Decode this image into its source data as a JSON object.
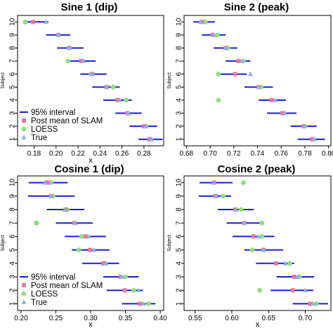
{
  "colors": {
    "interval": "#1a1adb",
    "slam": "#e8789c",
    "loess": "#8ddf7e",
    "true": "#8ab4e8",
    "axis": "#000000"
  },
  "legend": [
    {
      "key": "interval",
      "label": "95% interval",
      "symbol": "line"
    },
    {
      "key": "slam",
      "label": "Post mean of SLAM",
      "symbol": "square"
    },
    {
      "key": "loess",
      "label": "LOESS",
      "symbol": "circle"
    },
    {
      "key": "true",
      "label": "True",
      "symbol": "triangle"
    }
  ],
  "chart_data": [
    {
      "type": "scatter",
      "title": "Sine 1 (dip)",
      "xlabel": "x",
      "ylabel": "Subject",
      "xlim": [
        0.165,
        0.298
      ],
      "ylim": [
        0.5,
        10.5
      ],
      "xticks": [
        "0.18",
        "0.20",
        "0.22",
        "0.24",
        "0.26",
        "0.28"
      ],
      "xtick_values": [
        0.18,
        0.2,
        0.22,
        0.24,
        0.26,
        0.28
      ],
      "yticks": [
        "1",
        "2",
        "3",
        "4",
        "5",
        "6",
        "7",
        "8",
        "9",
        "10"
      ],
      "legend_position": "bottom-left",
      "subjects": [
        {
          "subject": 10,
          "lo": 0.17,
          "hi": 0.193,
          "slam": 0.179,
          "loess": 0.172,
          "true": 0.191
        },
        {
          "subject": 9,
          "lo": 0.191,
          "hi": 0.213,
          "slam": 0.202,
          "loess": 0.202,
          "true": 0.202
        },
        {
          "subject": 8,
          "lo": 0.201,
          "hi": 0.225,
          "slam": 0.212,
          "loess": 0.212,
          "true": 0.212
        },
        {
          "subject": 7,
          "lo": 0.211,
          "hi": 0.236,
          "slam": 0.223,
          "loess": 0.211,
          "true": 0.225
        },
        {
          "subject": 6,
          "lo": 0.222,
          "hi": 0.246,
          "slam": 0.233,
          "loess": 0.232,
          "true": 0.233
        },
        {
          "subject": 5,
          "lo": 0.233,
          "hi": 0.258,
          "slam": 0.246,
          "loess": 0.252,
          "true": 0.246
        },
        {
          "subject": 4,
          "lo": 0.243,
          "hi": 0.269,
          "slam": 0.256,
          "loess": 0.264,
          "true": 0.258
        },
        {
          "subject": 3,
          "lo": 0.254,
          "hi": 0.278,
          "slam": 0.265,
          "loess": 0.265,
          "true": 0.266
        },
        {
          "subject": 2,
          "lo": 0.267,
          "hi": 0.292,
          "slam": 0.28,
          "loess": 0.282,
          "true": 0.282
        },
        {
          "subject": 1,
          "lo": 0.275,
          "hi": 0.297,
          "slam": 0.285,
          "loess": 0.286,
          "true": 0.287
        }
      ]
    },
    {
      "type": "scatter",
      "title": "Sine 2 (peak)",
      "xlabel": "",
      "ylabel": "Subject",
      "xlim": [
        0.678,
        0.802
      ],
      "ylim": [
        0.5,
        10.5
      ],
      "xticks": [
        "0.68",
        "0.70",
        "0.72",
        "0.74",
        "0.76",
        "0.78",
        "0.80"
      ],
      "xtick_values": [
        0.68,
        0.7,
        0.72,
        0.74,
        0.76,
        0.78,
        0.8
      ],
      "yticks": [
        "1",
        "2",
        "3",
        "4",
        "5",
        "6",
        "7",
        "8",
        "9",
        "10"
      ],
      "subjects": [
        {
          "subject": 10,
          "lo": 0.686,
          "hi": 0.704,
          "slam": 0.693,
          "loess": 0.696,
          "true": 0.692
        },
        {
          "subject": 9,
          "lo": 0.693,
          "hi": 0.713,
          "slam": 0.702,
          "loess": 0.706,
          "true": 0.703
        },
        {
          "subject": 8,
          "lo": 0.703,
          "hi": 0.723,
          "slam": 0.713,
          "loess": 0.715,
          "true": 0.713
        },
        {
          "subject": 7,
          "lo": 0.713,
          "hi": 0.734,
          "slam": 0.724,
          "loess": 0.728,
          "true": 0.727
        },
        {
          "subject": 6,
          "lo": 0.706,
          "hi": 0.731,
          "slam": 0.721,
          "loess": 0.707,
          "true": 0.734
        },
        {
          "subject": 5,
          "lo": 0.729,
          "hi": 0.753,
          "slam": 0.741,
          "loess": 0.743,
          "true": 0.741
        },
        {
          "subject": 4,
          "lo": 0.741,
          "hi": 0.764,
          "slam": 0.752,
          "loess": 0.707,
          "true": 0.755
        },
        {
          "subject": 3,
          "lo": 0.748,
          "hi": 0.773,
          "slam": 0.761,
          "loess": 0.762,
          "true": 0.763
        },
        {
          "subject": 2,
          "lo": 0.768,
          "hi": 0.79,
          "slam": 0.779,
          "loess": 0.78,
          "true": 0.78
        },
        {
          "subject": 1,
          "lo": 0.774,
          "hi": 0.797,
          "slam": 0.786,
          "loess": 0.787,
          "true": 0.788
        }
      ]
    },
    {
      "type": "scatter",
      "title": "Cosine 1 (dip)",
      "xlabel": "x",
      "ylabel": "Subject",
      "xlim": [
        0.195,
        0.405
      ],
      "ylim": [
        0.5,
        10.5
      ],
      "xticks": [
        "0.20",
        "0.25",
        "0.30",
        "0.35",
        "0.40"
      ],
      "xtick_values": [
        0.2,
        0.25,
        0.3,
        0.35,
        0.4
      ],
      "yticks": [
        "1",
        "2",
        "3",
        "4",
        "5",
        "6",
        "7",
        "8",
        "9",
        "10"
      ],
      "legend_position": "bottom-left",
      "subjects": [
        {
          "subject": 10,
          "lo": 0.211,
          "hi": 0.267,
          "slam": 0.238,
          "loess": 0.243,
          "true": 0.234
        },
        {
          "subject": 9,
          "lo": 0.21,
          "hi": 0.277,
          "slam": 0.243,
          "loess": 0.246,
          "true": 0.243
        },
        {
          "subject": 8,
          "lo": 0.237,
          "hi": 0.291,
          "slam": 0.264,
          "loess": 0.266,
          "true": 0.263
        },
        {
          "subject": 7,
          "lo": 0.25,
          "hi": 0.303,
          "slam": 0.277,
          "loess": 0.222,
          "true": 0.278
        },
        {
          "subject": 6,
          "lo": 0.263,
          "hi": 0.322,
          "slam": 0.293,
          "loess": 0.287,
          "true": 0.298
        },
        {
          "subject": 5,
          "lo": 0.273,
          "hi": 0.327,
          "slam": 0.299,
          "loess": 0.283,
          "true": 0.305
        },
        {
          "subject": 4,
          "lo": 0.288,
          "hi": 0.341,
          "slam": 0.318,
          "loess": 0.321,
          "true": 0.322
        },
        {
          "subject": 3,
          "lo": 0.318,
          "hi": 0.369,
          "slam": 0.343,
          "loess": 0.35,
          "true": 0.345
        },
        {
          "subject": 2,
          "lo": 0.323,
          "hi": 0.375,
          "slam": 0.349,
          "loess": 0.362,
          "true": 0.369
        },
        {
          "subject": 1,
          "lo": 0.345,
          "hi": 0.393,
          "slam": 0.371,
          "loess": 0.383,
          "true": 0.376
        }
      ]
    },
    {
      "type": "scatter",
      "title": "Cosine 2 (peak)",
      "xlabel": "x",
      "ylabel": "Subject",
      "xlim": [
        0.535,
        0.735
      ],
      "ylim": [
        0.5,
        10.5
      ],
      "xticks": [
        "0.55",
        "0.60",
        "0.65",
        "0.70"
      ],
      "xtick_values": [
        0.55,
        0.6,
        0.65,
        0.7
      ],
      "yticks": [
        "1",
        "2",
        "3",
        "4",
        "5",
        "6",
        "7",
        "8",
        "9",
        "10"
      ],
      "subjects": [
        {
          "subject": 10,
          "lo": 0.556,
          "hi": 0.601,
          "slam": 0.576,
          "loess": 0.616,
          "true": 0.575
        },
        {
          "subject": 9,
          "lo": 0.555,
          "hi": 0.599,
          "slam": 0.578,
          "loess": 0.588,
          "true": 0.579
        },
        {
          "subject": 8,
          "lo": 0.581,
          "hi": 0.63,
          "slam": 0.605,
          "loess": 0.613,
          "true": 0.606
        },
        {
          "subject": 7,
          "lo": 0.593,
          "hi": 0.64,
          "slam": 0.617,
          "loess": 0.641,
          "true": 0.617
        },
        {
          "subject": 6,
          "lo": 0.601,
          "hi": 0.658,
          "slam": 0.629,
          "loess": 0.641,
          "true": 0.636
        },
        {
          "subject": 5,
          "lo": 0.617,
          "hi": 0.67,
          "slam": 0.643,
          "loess": 0.628,
          "true": 0.643
        },
        {
          "subject": 4,
          "lo": 0.633,
          "hi": 0.685,
          "slam": 0.66,
          "loess": 0.679,
          "true": 0.673
        },
        {
          "subject": 3,
          "lo": 0.661,
          "hi": 0.712,
          "slam": 0.685,
          "loess": 0.692,
          "true": 0.69
        },
        {
          "subject": 2,
          "lo": 0.653,
          "hi": 0.711,
          "slam": 0.683,
          "loess": 0.638,
          "true": 0.7
        },
        {
          "subject": 1,
          "lo": 0.683,
          "hi": 0.731,
          "slam": 0.707,
          "loess": 0.715,
          "true": 0.711
        }
      ]
    }
  ]
}
